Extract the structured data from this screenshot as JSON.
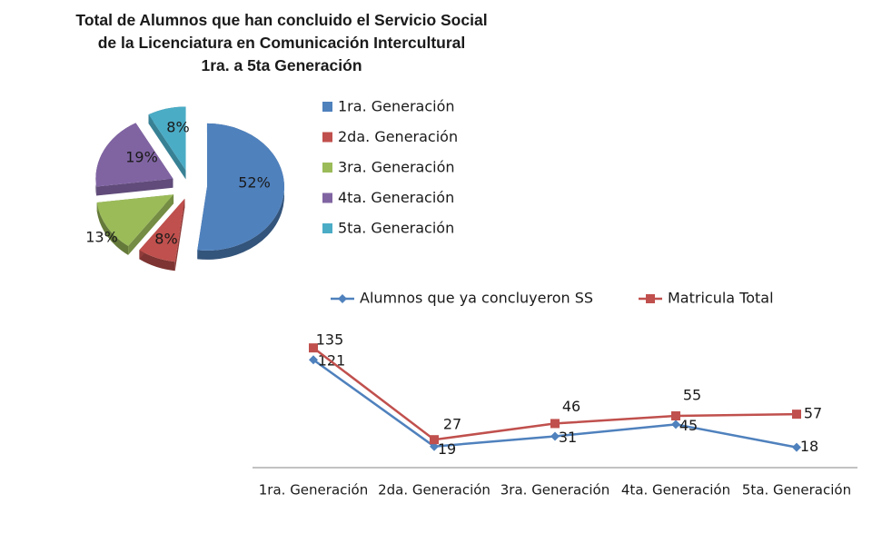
{
  "chart_data": [
    {
      "type": "pie",
      "title_lines": [
        "Total de Alumnos que han concluido el Servicio Social",
        "de la Licenciatura en Comunicación  Intercultural",
        "1ra. a 5ta Generación"
      ],
      "categories": [
        "1ra. Generación",
        "2da. Generación",
        "3ra. Generación",
        "4ta. Generación",
        "5ta. Generación"
      ],
      "values": [
        52,
        8,
        13,
        19,
        8
      ],
      "labels": [
        "52%",
        "8%",
        "13%",
        "19%",
        "8%"
      ],
      "colors": [
        "#4F81BD",
        "#C0504D",
        "#9BBB59",
        "#8064A2",
        "#4BACC6"
      ],
      "exploded": true,
      "legend_position": "right"
    },
    {
      "type": "line",
      "categories": [
        "1ra. Generación",
        "2da. Generación",
        "3ra. Generación",
        "4ta. Generación",
        "5ta. Generación"
      ],
      "series": [
        {
          "name": "Alumnos que ya concluyeron SS",
          "values": [
            121,
            19,
            31,
            45,
            18
          ],
          "color": "#4F81BD",
          "marker": "diamond"
        },
        {
          "name": "Matricula Total",
          "values": [
            135,
            27,
            46,
            55,
            57
          ],
          "color": "#C0504D",
          "marker": "square"
        }
      ],
      "legend_position": "top",
      "grid": false
    }
  ]
}
